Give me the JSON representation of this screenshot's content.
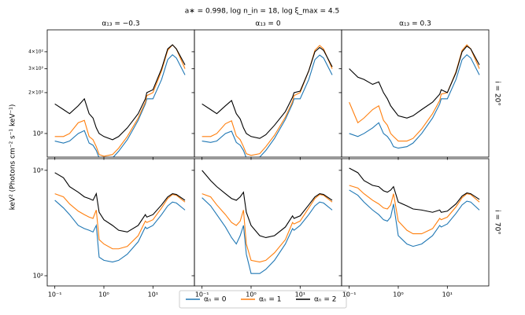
{
  "title": "a∗ = 0.998, log n_in = 18, log ξ_max = 4.5",
  "ylabel": "keV² (Photons cm⁻² s⁻¹ keV⁻¹)",
  "row_labels": [
    "i = 20°",
    "i = 70°"
  ],
  "chart_data": [
    {
      "type": "line",
      "title": "α₁₃ = −0.3",
      "xscale": "log",
      "yscale": "log",
      "x": [
        0.1,
        0.15,
        0.2,
        0.3,
        0.4,
        0.5,
        0.6,
        0.7,
        0.8,
        1,
        1.5,
        2,
        3,
        5,
        7,
        7.5,
        10,
        15,
        20,
        25,
        30,
        45
      ],
      "xlim": [
        0.07,
        70
      ],
      "ylim": [
        67,
        580
      ],
      "xticks": [
        0.1,
        1,
        10
      ],
      "yticks": [
        {
          "value": 100,
          "label": "10²"
        },
        {
          "value": 200,
          "label": "2×10²"
        },
        {
          "value": 300,
          "label": "3×10²"
        },
        {
          "value": 400,
          "label": "4×10²"
        }
      ],
      "series": [
        {
          "name": "αₙ = 0",
          "color": "#1f77b4",
          "values": [
            88,
            85,
            88,
            100,
            105,
            85,
            82,
            75,
            66,
            64,
            66,
            74,
            90,
            125,
            165,
            180,
            180,
            250,
            350,
            380,
            360,
            270
          ]
        },
        {
          "name": "αₙ = 1",
          "color": "#ff7f0e",
          "values": [
            95,
            95,
            100,
            120,
            125,
            95,
            90,
            80,
            70,
            68,
            70,
            78,
            95,
            130,
            170,
            190,
            200,
            290,
            410,
            450,
            420,
            300
          ]
        },
        {
          "name": "αₙ = 2",
          "color": "#000000",
          "values": [
            165,
            150,
            140,
            160,
            180,
            140,
            130,
            110,
            100,
            95,
            90,
            95,
            110,
            140,
            180,
            200,
            210,
            300,
            420,
            450,
            420,
            320
          ]
        }
      ]
    },
    {
      "type": "line",
      "title": "α₁₃ = 0",
      "xscale": "log",
      "yscale": "log",
      "x": [
        0.1,
        0.15,
        0.2,
        0.3,
        0.4,
        0.5,
        0.6,
        0.7,
        0.8,
        1,
        1.5,
        2,
        3,
        5,
        7,
        7.5,
        10,
        15,
        20,
        25,
        30,
        45
      ],
      "xlim": [
        0.07,
        70
      ],
      "ylim": [
        67,
        580
      ],
      "xticks": [
        0.1,
        1,
        10
      ],
      "yticks": [
        100,
        200,
        300,
        400
      ],
      "series": [
        {
          "color": "#1f77b4",
          "values": [
            88,
            86,
            88,
            100,
            104,
            86,
            82,
            75,
            66,
            65,
            67,
            75,
            92,
            127,
            166,
            180,
            180,
            250,
            350,
            378,
            360,
            270
          ]
        },
        {
          "color": "#ff7f0e",
          "values": [
            95,
            95,
            100,
            118,
            124,
            96,
            90,
            80,
            71,
            69,
            71,
            80,
            97,
            132,
            172,
            190,
            200,
            290,
            410,
            445,
            420,
            300
          ]
        },
        {
          "color": "#000000",
          "values": [
            165,
            150,
            140,
            160,
            175,
            140,
            128,
            110,
            100,
            95,
            92,
            98,
            115,
            145,
            185,
            200,
            205,
            290,
            400,
            430,
            410,
            310
          ]
        }
      ]
    },
    {
      "type": "line",
      "title": "α₁₃ = 0.3",
      "xscale": "log",
      "yscale": "log",
      "x": [
        0.1,
        0.15,
        0.2,
        0.3,
        0.4,
        0.5,
        0.6,
        0.7,
        0.8,
        1,
        1.5,
        2,
        3,
        5,
        7,
        7.5,
        10,
        15,
        20,
        25,
        30,
        45
      ],
      "xlim": [
        0.07,
        70
      ],
      "ylim": [
        67,
        580
      ],
      "xticks": [
        0.1,
        1,
        10
      ],
      "yticks": [
        100,
        200,
        300,
        400
      ],
      "series": [
        {
          "color": "#1f77b4",
          "values": [
            100,
            95,
            100,
            110,
            120,
            100,
            95,
            88,
            80,
            78,
            80,
            85,
            100,
            130,
            165,
            180,
            180,
            250,
            350,
            380,
            360,
            270
          ]
        },
        {
          "color": "#ff7f0e",
          "values": [
            170,
            120,
            130,
            150,
            160,
            125,
            115,
            100,
            95,
            88,
            88,
            92,
            108,
            140,
            175,
            195,
            200,
            285,
            410,
            450,
            420,
            300
          ]
        },
        {
          "color": "#000000",
          "values": [
            300,
            260,
            250,
            230,
            240,
            200,
            180,
            160,
            150,
            135,
            130,
            135,
            150,
            170,
            195,
            210,
            200,
            280,
            400,
            440,
            420,
            320
          ]
        }
      ]
    },
    {
      "type": "line",
      "xscale": "log",
      "yscale": "log",
      "x": [
        0.1,
        0.15,
        0.2,
        0.3,
        0.4,
        0.5,
        0.6,
        0.7,
        0.8,
        1,
        1.5,
        2,
        3,
        5,
        7,
        7.5,
        10,
        15,
        20,
        25,
        30,
        45
      ],
      "xlim": [
        0.07,
        70
      ],
      "ylim": [
        80,
        1290
      ],
      "xticks": [
        {
          "value": 0.1,
          "label": "10⁻¹"
        },
        {
          "value": 1,
          "label": "10⁰"
        },
        {
          "value": 10,
          "label": "10¹"
        }
      ],
      "yticks": [
        {
          "value": 100,
          "label": "10²"
        },
        {
          "value": 1000,
          "label": "10³"
        }
      ],
      "series": [
        {
          "color": "#1f77b4",
          "values": [
            520,
            440,
            380,
            300,
            280,
            270,
            260,
            300,
            150,
            140,
            135,
            140,
            160,
            210,
            290,
            280,
            300,
            380,
            460,
            500,
            490,
            420
          ]
        },
        {
          "color": "#ff7f0e",
          "values": [
            600,
            560,
            480,
            410,
            380,
            360,
            350,
            420,
            220,
            200,
            180,
            180,
            190,
            240,
            330,
            320,
            340,
            440,
            540,
            590,
            580,
            500
          ]
        },
        {
          "color": "#000000",
          "values": [
            950,
            850,
            700,
            620,
            560,
            540,
            520,
            600,
            400,
            340,
            300,
            270,
            260,
            300,
            380,
            360,
            380,
            470,
            560,
            600,
            590,
            520
          ]
        }
      ]
    },
    {
      "type": "line",
      "xscale": "log",
      "yscale": "log",
      "x": [
        0.1,
        0.15,
        0.2,
        0.3,
        0.4,
        0.5,
        0.6,
        0.7,
        0.8,
        1,
        1.5,
        2,
        3,
        5,
        7,
        7.5,
        10,
        15,
        20,
        25,
        30,
        45
      ],
      "xlim": [
        0.07,
        70
      ],
      "ylim": [
        80,
        1290
      ],
      "xticks": [
        {
          "value": 0.1,
          "label": "10⁻¹"
        },
        {
          "value": 1,
          "label": "10⁰"
        },
        {
          "value": 10,
          "label": "10¹"
        }
      ],
      "yticks": [
        100,
        1000
      ],
      "series": [
        {
          "color": "#1f77b4",
          "values": [
            550,
            460,
            380,
            290,
            230,
            200,
            240,
            300,
            160,
            105,
            105,
            115,
            140,
            200,
            280,
            270,
            300,
            380,
            460,
            500,
            490,
            420
          ]
        },
        {
          "color": "#ff7f0e",
          "values": [
            600,
            560,
            470,
            380,
            320,
            300,
            330,
            420,
            200,
            140,
            135,
            140,
            165,
            220,
            320,
            310,
            330,
            440,
            540,
            590,
            580,
            500
          ]
        },
        {
          "color": "#000000",
          "values": [
            1000,
            800,
            700,
            600,
            540,
            520,
            560,
            620,
            400,
            300,
            240,
            230,
            240,
            290,
            370,
            350,
            370,
            470,
            560,
            600,
            590,
            520
          ]
        }
      ]
    },
    {
      "type": "line",
      "xscale": "log",
      "yscale": "log",
      "x": [
        0.1,
        0.15,
        0.2,
        0.3,
        0.4,
        0.5,
        0.6,
        0.7,
        0.8,
        1,
        1.5,
        2,
        3,
        5,
        7,
        7.5,
        10,
        15,
        20,
        25,
        30,
        45
      ],
      "xlim": [
        0.07,
        70
      ],
      "ylim": [
        80,
        1290
      ],
      "xticks": [
        {
          "value": 0.1,
          "label": "10⁻¹"
        },
        {
          "value": 1,
          "label": "10⁰"
        },
        {
          "value": 10,
          "label": "10¹"
        }
      ],
      "yticks": [
        100,
        1000
      ],
      "series": [
        {
          "color": "#1f77b4",
          "values": [
            650,
            580,
            500,
            420,
            380,
            340,
            330,
            360,
            480,
            240,
            200,
            190,
            200,
            240,
            300,
            290,
            310,
            390,
            470,
            510,
            500,
            420
          ]
        },
        {
          "color": "#ff7f0e",
          "values": [
            720,
            680,
            600,
            520,
            480,
            440,
            430,
            470,
            600,
            330,
            270,
            250,
            250,
            280,
            350,
            340,
            360,
            450,
            550,
            600,
            590,
            500
          ]
        },
        {
          "color": "#000000",
          "values": [
            1050,
            950,
            800,
            720,
            700,
            640,
            620,
            650,
            700,
            500,
            460,
            430,
            420,
            400,
            420,
            400,
            410,
            480,
            570,
            610,
            600,
            530
          ]
        }
      ]
    }
  ]
}
